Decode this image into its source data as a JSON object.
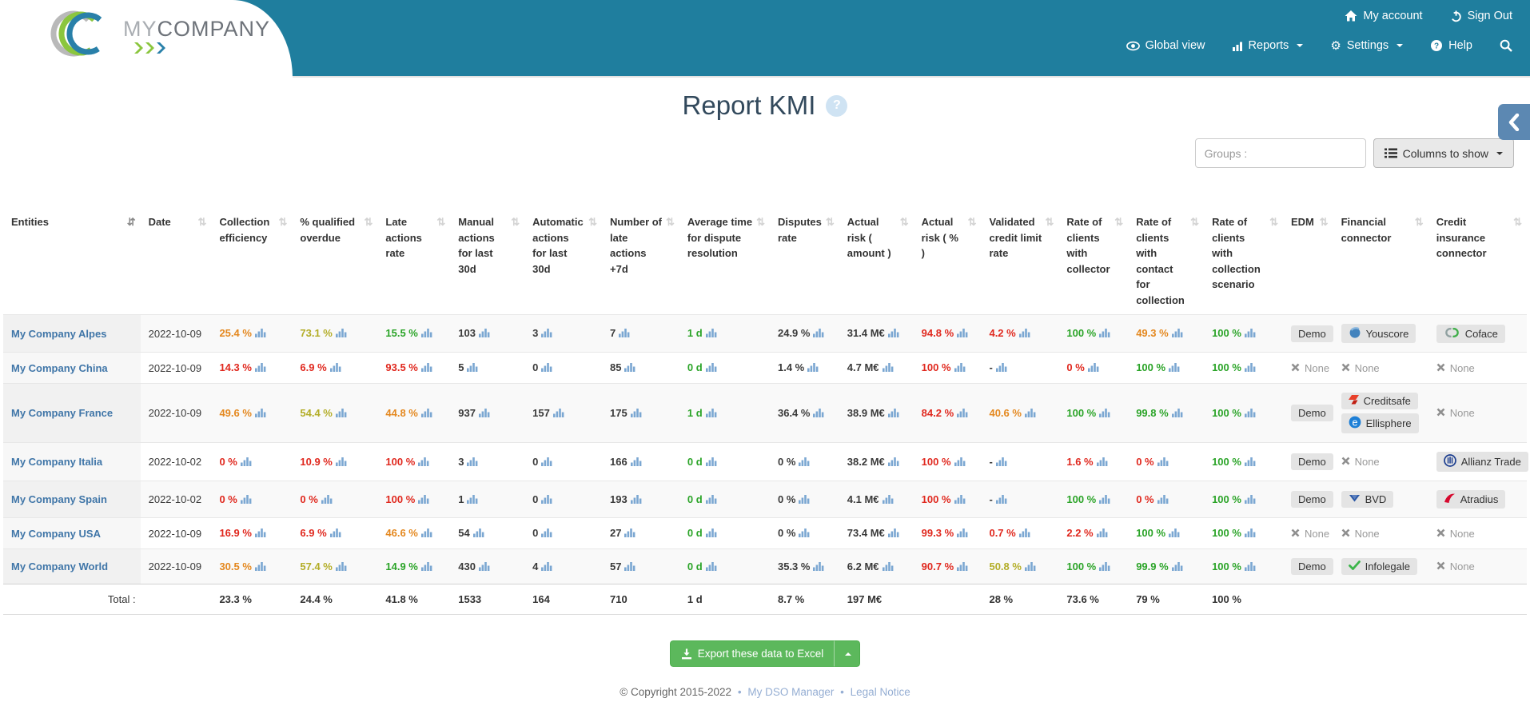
{
  "palette": {
    "red": "#e0281e",
    "orange": "#e4881f",
    "olive": "#b3ad27",
    "green": "#2ba428",
    "dark": "#3a3a3a",
    "link_blue": "#4076a8",
    "header_teal": "#1f7e9e",
    "side_tab_blue": "#5c88b2",
    "export_green": "#5cb85c",
    "pill_gray": "#e4e4e4",
    "none_gray": "#999999",
    "chart_icon_blue": "#7ba7d2",
    "help_badge_bg": "#cfe3f3",
    "footer_link": "#95aed3"
  },
  "header": {
    "logo": {
      "my": "MY",
      "company": "COMPANY"
    },
    "top_nav": [
      {
        "label": "My account",
        "icon": "home-icon"
      },
      {
        "label": "Sign Out",
        "icon": "power-icon"
      }
    ],
    "main_nav": [
      {
        "label": "Global view",
        "icon": "eye-icon"
      },
      {
        "label": "Reports",
        "icon": "bar-chart-icon"
      },
      {
        "label": "Settings",
        "icon": "gear-icon"
      },
      {
        "label": "Help",
        "icon": "question-icon"
      }
    ],
    "gear_glyph": "⚙"
  },
  "page": {
    "title": "Report KMI",
    "help_glyph": "?",
    "groups_placeholder": "Groups :",
    "columns_button_label": "Columns to show"
  },
  "table": {
    "columns": [
      "Entities",
      "Date",
      "Collection efficiency",
      "% qualified overdue",
      "Late actions rate",
      "Manual actions for last 30d",
      "Automatic actions for last 30d",
      "Number of late actions +7d",
      "Average time for dispute resolution",
      "Disputes rate",
      "Actual risk ( amount )",
      "Actual risk ( % )",
      "Validated credit limit rate",
      "Rate of clients with collector",
      "Rate of clients with contact for collection",
      "Rate of clients with collection scenario",
      "EDM",
      "Financial connector",
      "Credit insurance connector"
    ],
    "rows": [
      {
        "entity": "My Company Alpes",
        "date": "2022-10-09",
        "metrics": [
          {
            "v": "25.4 %",
            "c": "orange"
          },
          {
            "v": "73.1 %",
            "c": "olive"
          },
          {
            "v": "15.5 %",
            "c": "green"
          },
          {
            "v": "103",
            "c": "dark"
          },
          {
            "v": "3",
            "c": "dark"
          },
          {
            "v": "7",
            "c": "dark"
          },
          {
            "v": "1 d",
            "c": "green"
          },
          {
            "v": "24.9 %",
            "c": "dark"
          },
          {
            "v": "31.4 M€",
            "c": "dark"
          },
          {
            "v": "94.8 %",
            "c": "red"
          },
          {
            "v": "4.2 %",
            "c": "red"
          },
          {
            "v": "100 %",
            "c": "green"
          },
          {
            "v": "49.3 %",
            "c": "orange"
          },
          {
            "v": "100 %",
            "c": "green"
          }
        ],
        "edm": {
          "label": "Demo",
          "icon": null
        },
        "financial": [
          {
            "label": "Youscore",
            "icon": "youscore-icon"
          }
        ],
        "insurance": [
          {
            "label": "Coface",
            "icon": "coface-icon"
          }
        ]
      },
      {
        "entity": "My Company China",
        "date": "2022-10-09",
        "metrics": [
          {
            "v": "14.3 %",
            "c": "red"
          },
          {
            "v": "6.9 %",
            "c": "red"
          },
          {
            "v": "93.5 %",
            "c": "red"
          },
          {
            "v": "5",
            "c": "dark"
          },
          {
            "v": "0",
            "c": "dark"
          },
          {
            "v": "85",
            "c": "dark"
          },
          {
            "v": "0 d",
            "c": "green"
          },
          {
            "v": "1.4 %",
            "c": "dark"
          },
          {
            "v": "4.7 M€",
            "c": "dark"
          },
          {
            "v": "100 %",
            "c": "red"
          },
          {
            "v": "-",
            "c": "dark"
          },
          {
            "v": "0 %",
            "c": "red"
          },
          {
            "v": "100 %",
            "c": "green"
          },
          {
            "v": "100 %",
            "c": "green"
          }
        ],
        "edm": {
          "label": "None",
          "icon": "none-icon"
        },
        "financial": [
          {
            "label": "None",
            "icon": "none-icon"
          }
        ],
        "insurance": [
          {
            "label": "None",
            "icon": "none-icon"
          }
        ]
      },
      {
        "entity": "My Company France",
        "date": "2022-10-09",
        "metrics": [
          {
            "v": "49.6 %",
            "c": "orange"
          },
          {
            "v": "54.4 %",
            "c": "olive"
          },
          {
            "v": "44.8 %",
            "c": "orange"
          },
          {
            "v": "937",
            "c": "dark"
          },
          {
            "v": "157",
            "c": "dark"
          },
          {
            "v": "175",
            "c": "dark"
          },
          {
            "v": "1 d",
            "c": "green"
          },
          {
            "v": "36.4 %",
            "c": "dark"
          },
          {
            "v": "38.9 M€",
            "c": "dark"
          },
          {
            "v": "84.2 %",
            "c": "red"
          },
          {
            "v": "40.6 %",
            "c": "orange"
          },
          {
            "v": "100 %",
            "c": "green"
          },
          {
            "v": "99.8 %",
            "c": "green"
          },
          {
            "v": "100 %",
            "c": "green"
          }
        ],
        "edm": {
          "label": "Demo",
          "icon": null
        },
        "financial": [
          {
            "label": "Creditsafe",
            "icon": "creditsafe-icon"
          },
          {
            "label": "Ellisphere",
            "icon": "ellisphere-icon"
          }
        ],
        "insurance": [
          {
            "label": "None",
            "icon": "none-icon"
          }
        ]
      },
      {
        "entity": "My Company Italia",
        "date": "2022-10-02",
        "metrics": [
          {
            "v": "0 %",
            "c": "red"
          },
          {
            "v": "10.9 %",
            "c": "red"
          },
          {
            "v": "100 %",
            "c": "red"
          },
          {
            "v": "3",
            "c": "dark"
          },
          {
            "v": "0",
            "c": "dark"
          },
          {
            "v": "166",
            "c": "dark"
          },
          {
            "v": "0 d",
            "c": "green"
          },
          {
            "v": "0 %",
            "c": "dark"
          },
          {
            "v": "38.2 M€",
            "c": "dark"
          },
          {
            "v": "100 %",
            "c": "red"
          },
          {
            "v": "-",
            "c": "dark"
          },
          {
            "v": "1.6 %",
            "c": "red"
          },
          {
            "v": "0 %",
            "c": "red"
          },
          {
            "v": "100 %",
            "c": "green"
          }
        ],
        "edm": {
          "label": "Demo",
          "icon": null
        },
        "financial": [
          {
            "label": "None",
            "icon": "none-icon"
          }
        ],
        "insurance": [
          {
            "label": "Allianz Trade",
            "icon": "allianz-icon"
          }
        ]
      },
      {
        "entity": "My Company Spain",
        "date": "2022-10-02",
        "metrics": [
          {
            "v": "0 %",
            "c": "red"
          },
          {
            "v": "0 %",
            "c": "red"
          },
          {
            "v": "100 %",
            "c": "red"
          },
          {
            "v": "1",
            "c": "dark"
          },
          {
            "v": "0",
            "c": "dark"
          },
          {
            "v": "193",
            "c": "dark"
          },
          {
            "v": "0 d",
            "c": "green"
          },
          {
            "v": "0 %",
            "c": "dark"
          },
          {
            "v": "4.1 M€",
            "c": "dark"
          },
          {
            "v": "100 %",
            "c": "red"
          },
          {
            "v": "-",
            "c": "dark"
          },
          {
            "v": "100 %",
            "c": "green"
          },
          {
            "v": "0 %",
            "c": "red"
          },
          {
            "v": "100 %",
            "c": "green"
          }
        ],
        "edm": {
          "label": "Demo",
          "icon": null
        },
        "financial": [
          {
            "label": "BVD",
            "icon": "bvd-icon"
          }
        ],
        "insurance": [
          {
            "label": "Atradius",
            "icon": "atradius-icon"
          }
        ]
      },
      {
        "entity": "My Company USA",
        "date": "2022-10-09",
        "metrics": [
          {
            "v": "16.9 %",
            "c": "red"
          },
          {
            "v": "6.9 %",
            "c": "red"
          },
          {
            "v": "46.6 %",
            "c": "orange"
          },
          {
            "v": "54",
            "c": "dark"
          },
          {
            "v": "0",
            "c": "dark"
          },
          {
            "v": "27",
            "c": "dark"
          },
          {
            "v": "0 d",
            "c": "green"
          },
          {
            "v": "0 %",
            "c": "dark"
          },
          {
            "v": "73.4 M€",
            "c": "dark"
          },
          {
            "v": "99.3 %",
            "c": "red"
          },
          {
            "v": "0.7 %",
            "c": "red"
          },
          {
            "v": "2.2 %",
            "c": "red"
          },
          {
            "v": "100 %",
            "c": "green"
          },
          {
            "v": "100 %",
            "c": "green"
          }
        ],
        "edm": {
          "label": "None",
          "icon": "none-icon"
        },
        "financial": [
          {
            "label": "None",
            "icon": "none-icon"
          }
        ],
        "insurance": [
          {
            "label": "None",
            "icon": "none-icon"
          }
        ]
      },
      {
        "entity": "My Company World",
        "date": "2022-10-09",
        "metrics": [
          {
            "v": "30.5 %",
            "c": "orange"
          },
          {
            "v": "57.4 %",
            "c": "olive"
          },
          {
            "v": "14.9 %",
            "c": "green"
          },
          {
            "v": "430",
            "c": "dark"
          },
          {
            "v": "4",
            "c": "dark"
          },
          {
            "v": "57",
            "c": "dark"
          },
          {
            "v": "0 d",
            "c": "green"
          },
          {
            "v": "35.3 %",
            "c": "dark"
          },
          {
            "v": "6.2 M€",
            "c": "dark"
          },
          {
            "v": "90.7 %",
            "c": "red"
          },
          {
            "v": "50.8 %",
            "c": "olive"
          },
          {
            "v": "100 %",
            "c": "green"
          },
          {
            "v": "99.9 %",
            "c": "green"
          },
          {
            "v": "100 %",
            "c": "green"
          }
        ],
        "edm": {
          "label": "Demo",
          "icon": null
        },
        "financial": [
          {
            "label": "Infolegale",
            "icon": "infolegale-icon"
          }
        ],
        "insurance": [
          {
            "label": "None",
            "icon": "none-icon"
          }
        ]
      }
    ],
    "total_label": "Total :",
    "total": [
      "23.3 %",
      "24.4 %",
      "41.8 %",
      "1533",
      "164",
      "710",
      "1 d",
      "8.7 %",
      "197 M€",
      "",
      "28 %",
      "73.6 %",
      "79 %",
      "100 %"
    ]
  },
  "footer": {
    "export_label": "Export these data to Excel",
    "copyright": "© Copyright 2015-2022",
    "separator": "•",
    "links": [
      {
        "label": "My DSO Manager"
      },
      {
        "label": "Legal Notice"
      }
    ]
  }
}
